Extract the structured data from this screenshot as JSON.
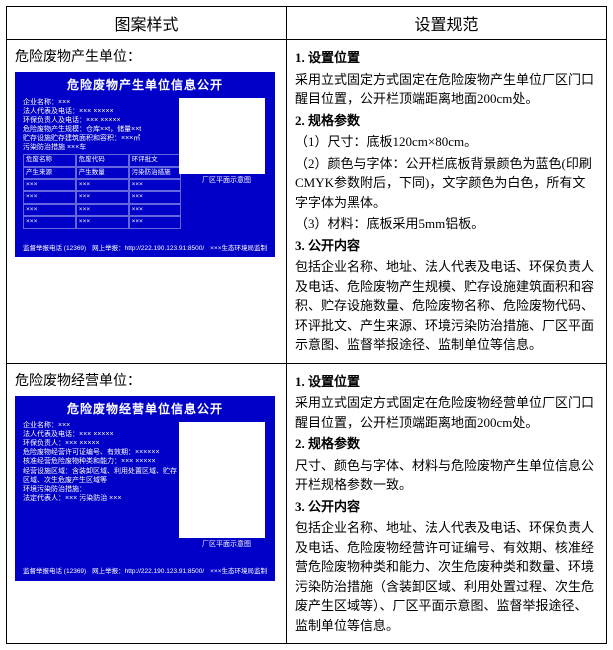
{
  "headers": {
    "left": "图案样式",
    "right": "设置规范"
  },
  "row1": {
    "unit_label": "危险废物产生单位：",
    "board": {
      "title": "危险废物产生单位信息公开",
      "bg_color": "#0000c8",
      "text_color": "#ffffff",
      "lines": [
        "企业名称：×××",
        "法人代表及电话：××× ×××××",
        "环保负责人及电话：××× ×××××",
        "危险废物产生规模：仓库××t，储量××t",
        "贮存设施贮存建筑面积和容积：×××㎡",
        "污染防治措施 ×××车"
      ],
      "table_heads": [
        "危废名称",
        "危废代码",
        "环评批文",
        "产生来源",
        "产生数量",
        "污染防治措施"
      ],
      "table_cells": [
        "×××",
        "×××",
        "×××",
        "×××",
        "×××",
        "×××",
        "×××",
        "×××",
        "×××",
        "×××",
        "×××",
        "×××"
      ],
      "map_caption": "厂区平面示意图",
      "footer_left": "监督举报电话 (12369)",
      "footer_mid": "网上举报：http://222.190.123.91:8500/",
      "footer_right": "×××生态环境局监制"
    },
    "spec": {
      "h1": "1. 设置位置",
      "p1": "采用立式固定方式固定在危险废物产生单位厂区门口醒目位置，公开栏顶端距离地面200cm处。",
      "h2": "2. 规格参数",
      "p2a": "（1）尺寸：底板120cm×80cm。",
      "p2b": "（2）颜色与字体：公开栏底板背景颜色为蓝色(印刷CMYK参数附后，下同)，文字颜色为白色，所有文字字体为黑体。",
      "p2c": "（3）材料：底板采用5mm铝板。",
      "h3": "3. 公开内容",
      "p3": "包括企业名称、地址、法人代表及电话、环保负责人及电话、危险废物产生规模、贮存设施建筑面积和容积、贮存设施数量、危险废物名称、危险废物代码、环评批文、产生来源、环境污染防治措施、厂区平面示意图、监督举报途径、监制单位等信息。"
    }
  },
  "row2": {
    "unit_label": "危险废物经营单位：",
    "board": {
      "title": "危险废物经营单位信息公开",
      "bg_color": "#0000c8",
      "text_color": "#ffffff",
      "lines": [
        "企业名称：×××",
        "法人代表及电话：××× ×××××",
        "环保负责人：××× ×××××",
        "危险废物经营许可证编号、有效期：××××××",
        "核准经营危险废物种类和能力：××× ×××××",
        "经营设施区域：含装卸区域、利用处置区域、贮存",
        "区域、次生危废产生区域等",
        "环境污染防治措施：",
        "法定代表人：××× 污染防治 ×××"
      ],
      "map_caption": "厂区平面示意图",
      "footer_left": "监督举报电话 (12369)",
      "footer_mid": "网上举报：http://222.190.123.91:8500/",
      "footer_right": "×××生态环境局监制"
    },
    "spec": {
      "h1": "1. 设置位置",
      "p1": "采用立式固定方式固定在危险废物经营单位厂区门口醒目位置，公开栏顶端距离地面200cm处。",
      "h2": "2. 规格参数",
      "p2": "尺寸、颜色与字体、材料与危险废物产生单位信息公开栏规格参数一致。",
      "h3": "3. 公开内容",
      "p3": "包括企业名称、地址、法人代表及电话、环保负责人及电话、危险废物经营许可证编号、有效期、核准经营危险废物种类和能力、次生危废种类和数量、环境污染防治措施（含装卸区域、利用处置过程、次生危废产生区域等）、厂区平面示意图、监督举报途径、监制单位等信息。"
    }
  }
}
